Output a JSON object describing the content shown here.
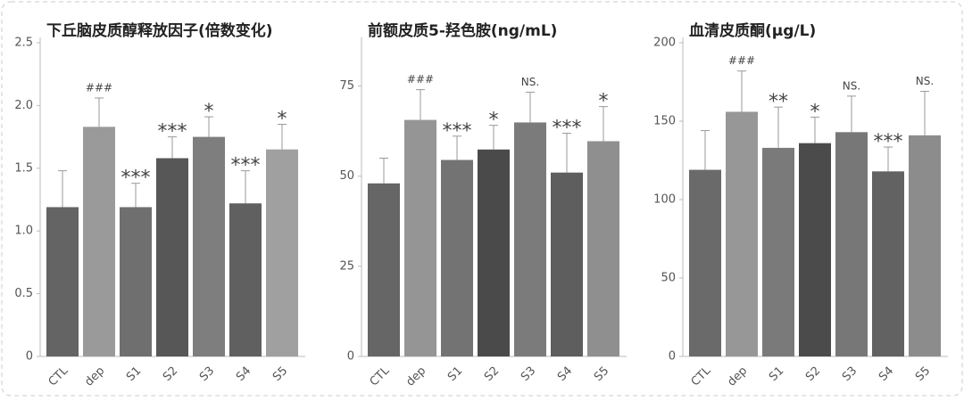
{
  "chart_data": [
    {
      "type": "bar",
      "title": "下丘脑皮质醇释放因子(倍数变化)",
      "categories": [
        "CTL",
        "dep",
        "S1",
        "S2",
        "S3",
        "S4",
        "S5"
      ],
      "values": [
        1.19,
        1.83,
        1.19,
        1.58,
        1.75,
        1.22,
        1.65
      ],
      "errors": [
        0.29,
        0.23,
        0.19,
        0.17,
        0.16,
        0.26,
        0.2
      ],
      "annotations": [
        null,
        "###",
        "***",
        "***",
        "*",
        "***",
        "*"
      ],
      "colors": [
        "#646464",
        "#9a9a9a",
        "#6f6f6f",
        "#575757",
        "#7e7e7e",
        "#606060",
        "#a0a0a0"
      ],
      "ylim": [
        0,
        2.5
      ],
      "yticks": [
        0,
        0.5,
        {
          "value": 1,
          "label": "1.0"
        },
        1.5,
        {
          "value": 2,
          "label": "2.0"
        },
        2.5
      ]
    },
    {
      "type": "bar",
      "title": "前额皮质5-羟色胺(ng/mL)",
      "categories": [
        "CTL",
        "dep",
        "S1",
        "S2",
        "S3",
        "S4",
        "S5"
      ],
      "values": [
        48,
        65.6,
        54.5,
        57.4,
        64.9,
        51,
        59.7
      ],
      "errors": [
        7,
        8.4,
        6.6,
        6.7,
        8.4,
        10.9,
        9.6
      ],
      "annotations": [
        null,
        "###",
        "***",
        "*",
        "NS.",
        "***",
        "*"
      ],
      "colors": [
        "#666666",
        "#959595",
        "#737373",
        "#4a4a4a",
        "#7b7b7b",
        "#5e5e5e",
        "#8f8f8f"
      ],
      "ylim": [
        0,
        87
      ],
      "yticks": [
        0,
        25,
        50,
        75
      ]
    },
    {
      "type": "bar",
      "title": "血清皮质酮(μg/L)",
      "categories": [
        "CTL",
        "dep",
        "S1",
        "S2",
        "S3",
        "S4",
        "S5"
      ],
      "values": [
        119,
        156,
        133,
        136,
        143,
        118,
        141
      ],
      "errors": [
        25,
        26,
        26,
        16.6,
        23,
        15.5,
        28
      ],
      "annotations": [
        null,
        "###",
        "**",
        "*",
        "NS.",
        "***",
        "NS."
      ],
      "colors": [
        "#6a6a6a",
        "#979797",
        "#7a7a7a",
        "#4b4b4b",
        "#777777",
        "#626262",
        "#8c8c8c"
      ],
      "ylim": [
        0,
        200
      ],
      "yticks": [
        0,
        50,
        100,
        150,
        200
      ]
    }
  ]
}
